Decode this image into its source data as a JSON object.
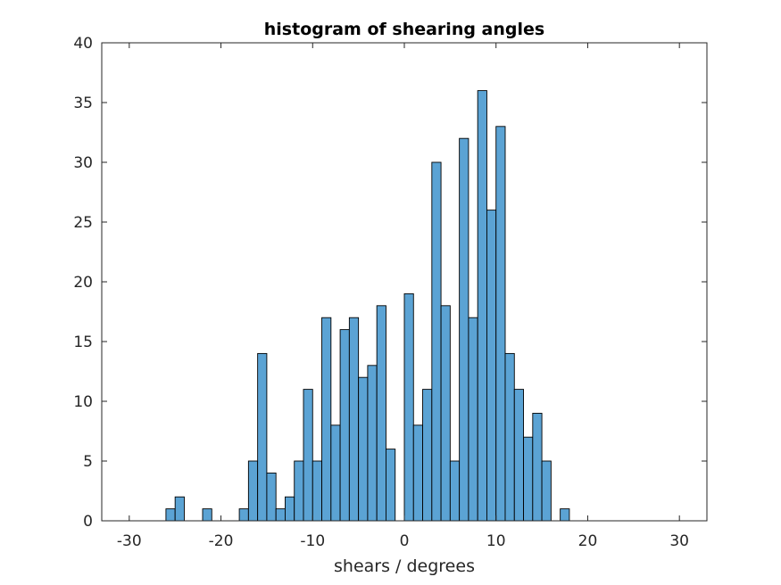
{
  "chart_data": {
    "type": "bar",
    "title": "histogram of shearing angles",
    "xlabel": "shears / degrees",
    "ylabel": "",
    "xlim": [
      -33,
      33
    ],
    "ylim": [
      0,
      40
    ],
    "xticks": [
      -30,
      -20,
      -10,
      0,
      10,
      20,
      30
    ],
    "yticks": [
      0,
      5,
      10,
      15,
      20,
      25,
      30,
      35,
      40
    ],
    "bin_width": 1,
    "bar_color": "#5ba3d4",
    "edge_color": "#000000",
    "grid": false,
    "bins": [
      {
        "x": -30,
        "value": 0
      },
      {
        "x": -29,
        "value": 0
      },
      {
        "x": -28,
        "value": 0
      },
      {
        "x": -27,
        "value": 0
      },
      {
        "x": -26,
        "value": 1
      },
      {
        "x": -25,
        "value": 2
      },
      {
        "x": -24,
        "value": 0
      },
      {
        "x": -23,
        "value": 0
      },
      {
        "x": -22,
        "value": 1
      },
      {
        "x": -21,
        "value": 0
      },
      {
        "x": -20,
        "value": 0
      },
      {
        "x": -19,
        "value": 0
      },
      {
        "x": -18,
        "value": 1
      },
      {
        "x": -17,
        "value": 5
      },
      {
        "x": -16,
        "value": 14
      },
      {
        "x": -15,
        "value": 4
      },
      {
        "x": -14,
        "value": 1
      },
      {
        "x": -13,
        "value": 2
      },
      {
        "x": -12,
        "value": 5
      },
      {
        "x": -11,
        "value": 11
      },
      {
        "x": -10,
        "value": 5
      },
      {
        "x": -9,
        "value": 17
      },
      {
        "x": -8,
        "value": 8
      },
      {
        "x": -7,
        "value": 16
      },
      {
        "x": -6,
        "value": 17
      },
      {
        "x": -5,
        "value": 12
      },
      {
        "x": -4,
        "value": 13
      },
      {
        "x": -3,
        "value": 18
      },
      {
        "x": -2,
        "value": 6
      },
      {
        "x": -1,
        "value": 0
      },
      {
        "x": 0,
        "value": 19
      },
      {
        "x": 1,
        "value": 8
      },
      {
        "x": 2,
        "value": 11
      },
      {
        "x": 3,
        "value": 30
      },
      {
        "x": 4,
        "value": 18
      },
      {
        "x": 5,
        "value": 5
      },
      {
        "x": 6,
        "value": 32
      },
      {
        "x": 7,
        "value": 17
      },
      {
        "x": 8,
        "value": 36
      },
      {
        "x": 9,
        "value": 26
      },
      {
        "x": 10,
        "value": 33
      },
      {
        "x": 11,
        "value": 14
      },
      {
        "x": 12,
        "value": 11
      },
      {
        "x": 13,
        "value": 7
      },
      {
        "x": 14,
        "value": 9
      },
      {
        "x": 15,
        "value": 5
      },
      {
        "x": 16,
        "value": 0
      },
      {
        "x": 17,
        "value": 1
      },
      {
        "x": 18,
        "value": 0
      },
      {
        "x": 19,
        "value": 0
      },
      {
        "x": 20,
        "value": 0
      },
      {
        "x": 21,
        "value": 0
      },
      {
        "x": 22,
        "value": 0
      },
      {
        "x": 23,
        "value": 0
      },
      {
        "x": 24,
        "value": 0
      },
      {
        "x": 25,
        "value": 0
      },
      {
        "x": 26,
        "value": 0
      },
      {
        "x": 27,
        "value": 0
      },
      {
        "x": 28,
        "value": 0
      },
      {
        "x": 29,
        "value": 0
      }
    ]
  }
}
